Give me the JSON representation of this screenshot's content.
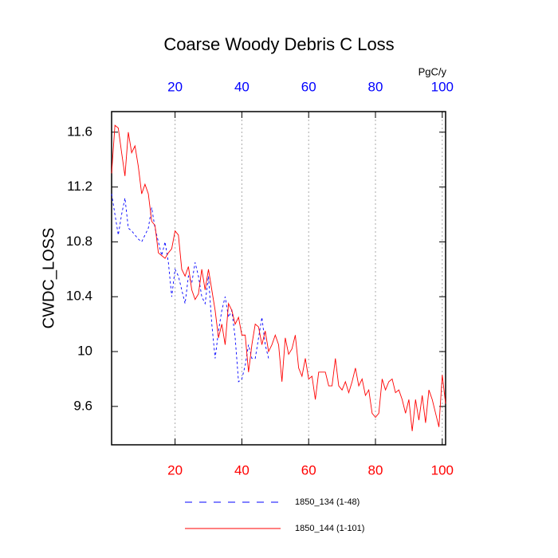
{
  "chart_data": {
    "type": "line",
    "title": "Coarse Woody Debris C Loss",
    "y_label": "CWDC_LOSS",
    "top_axis_label": "PgC/y",
    "xlim": [
      1,
      101
    ],
    "xticks": [
      20,
      40,
      60,
      80,
      100
    ],
    "ylim": [
      9.32,
      11.75
    ],
    "yticks": [
      9.6,
      10.0,
      10.4,
      10.8,
      11.2,
      11.6
    ],
    "grid": "x",
    "bottom_tick_color": "#ff0000",
    "top_tick_color": "#0000ff",
    "series": [
      {
        "name": "1850_134 (1-48)",
        "color": "#0000ff",
        "line_style": "dashed",
        "x": [
          1,
          2,
          3,
          4,
          5,
          6,
          7,
          8,
          9,
          10,
          11,
          12,
          13,
          14,
          15,
          16,
          17,
          18,
          19,
          20,
          21,
          22,
          23,
          24,
          25,
          26,
          27,
          28,
          29,
          30,
          31,
          32,
          33,
          34,
          35,
          36,
          37,
          38,
          39,
          40,
          41,
          42,
          43,
          44,
          45,
          46,
          47,
          48
        ],
        "values": [
          11.15,
          11.0,
          10.85,
          11.0,
          11.12,
          10.9,
          10.88,
          10.85,
          10.82,
          10.8,
          10.85,
          10.9,
          11.05,
          10.9,
          10.8,
          10.7,
          10.8,
          10.65,
          10.4,
          10.6,
          10.55,
          10.45,
          10.35,
          10.55,
          10.5,
          10.65,
          10.55,
          10.4,
          10.35,
          10.55,
          10.2,
          9.95,
          10.15,
          10.3,
          10.4,
          10.25,
          10.3,
          10.1,
          9.78,
          9.8,
          9.9,
          10.05,
          9.95,
          9.95,
          10.1,
          10.25,
          10.05,
          9.95
        ]
      },
      {
        "name": "1850_144 (1-101)",
        "color": "#ff0000",
        "line_style": "solid",
        "x": [
          1,
          2,
          3,
          4,
          5,
          6,
          7,
          8,
          9,
          10,
          11,
          12,
          13,
          14,
          15,
          16,
          17,
          18,
          19,
          20,
          21,
          22,
          23,
          24,
          25,
          26,
          27,
          28,
          29,
          30,
          31,
          32,
          33,
          34,
          35,
          36,
          37,
          38,
          39,
          40,
          41,
          42,
          43,
          44,
          45,
          46,
          47,
          48,
          49,
          50,
          51,
          52,
          53,
          54,
          55,
          56,
          57,
          58,
          59,
          60,
          61,
          62,
          63,
          64,
          65,
          66,
          67,
          68,
          69,
          70,
          71,
          72,
          73,
          74,
          75,
          76,
          77,
          78,
          79,
          80,
          81,
          82,
          83,
          84,
          85,
          86,
          87,
          88,
          89,
          90,
          91,
          92,
          93,
          94,
          95,
          96,
          97,
          98,
          99,
          100,
          101
        ],
        "values": [
          11.3,
          11.65,
          11.63,
          11.45,
          11.28,
          11.6,
          11.45,
          11.5,
          11.35,
          11.15,
          11.22,
          11.15,
          10.95,
          10.92,
          10.72,
          10.7,
          10.68,
          10.72,
          10.75,
          10.88,
          10.85,
          10.6,
          10.55,
          10.62,
          10.45,
          10.38,
          10.42,
          10.6,
          10.45,
          10.6,
          10.45,
          10.3,
          10.1,
          10.2,
          10.05,
          10.35,
          10.3,
          10.2,
          10.25,
          10.12,
          10.12,
          9.85,
          10.05,
          10.2,
          10.18,
          10.05,
          10.15,
          10.0,
          10.05,
          10.12,
          10.05,
          9.78,
          10.1,
          9.98,
          10.02,
          10.12,
          9.88,
          9.82,
          9.95,
          9.8,
          9.82,
          9.65,
          9.85,
          9.85,
          9.85,
          9.75,
          9.75,
          9.95,
          9.75,
          9.72,
          9.78,
          9.7,
          9.78,
          9.88,
          9.75,
          9.8,
          9.68,
          9.72,
          9.55,
          9.52,
          9.55,
          9.8,
          9.72,
          9.78,
          9.8,
          9.7,
          9.72,
          9.65,
          9.55,
          9.65,
          9.42,
          9.65,
          9.5,
          9.68,
          9.48,
          9.72,
          9.65,
          9.55,
          9.45,
          9.83,
          9.62
        ]
      }
    ]
  }
}
